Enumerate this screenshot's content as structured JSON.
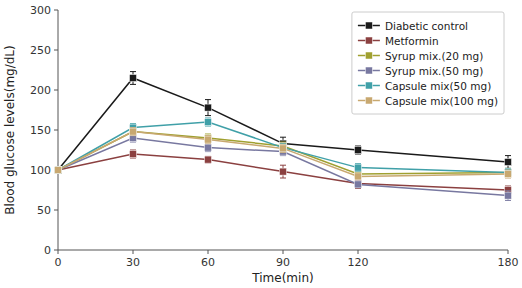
{
  "chart_data": {
    "type": "line",
    "x": [
      0,
      30,
      60,
      90,
      120,
      180
    ],
    "series": [
      {
        "name": "Diabetic control",
        "color": "#1a1a1a",
        "values": [
          100,
          215,
          178,
          133,
          125,
          110
        ],
        "errors": [
          0,
          8,
          10,
          8,
          5,
          8
        ]
      },
      {
        "name": "Metformin",
        "color": "#8B4040",
        "values": [
          100,
          120,
          113,
          98,
          83,
          75
        ],
        "errors": [
          0,
          5,
          4,
          8,
          6,
          5
        ]
      },
      {
        "name": "Syrup mix.(20 mg)",
        "color": "#a0a030",
        "values": [
          100,
          148,
          140,
          130,
          95,
          97
        ],
        "errors": [
          0,
          5,
          5,
          5,
          5,
          5
        ]
      },
      {
        "name": "Syrup mix.(50 mg)",
        "color": "#7878a0",
        "values": [
          100,
          140,
          128,
          123,
          82,
          68
        ],
        "errors": [
          0,
          5,
          5,
          5,
          4,
          6
        ]
      },
      {
        "name": "Capsule mix(50 mg)",
        "color": "#40a0a8",
        "values": [
          100,
          153,
          160,
          128,
          103,
          97
        ],
        "errors": [
          0,
          5,
          5,
          5,
          5,
          5
        ]
      },
      {
        "name": "Capsule mix(100 mg)",
        "color": "#c8a870",
        "values": [
          100,
          148,
          138,
          127,
          92,
          95
        ],
        "errors": [
          0,
          5,
          5,
          5,
          4,
          5
        ]
      }
    ],
    "xlabel": "Time(min)",
    "ylabel": "Blood glucose levels(mg/dL)",
    "xlim": [
      0,
      180
    ],
    "xticks": [
      0,
      30,
      60,
      90,
      120,
      180
    ],
    "ylim": [
      0,
      300
    ],
    "yticks": [
      0,
      50,
      100,
      150,
      200,
      250,
      300
    ],
    "marker": "square",
    "legend": "upper right",
    "grid": false
  }
}
